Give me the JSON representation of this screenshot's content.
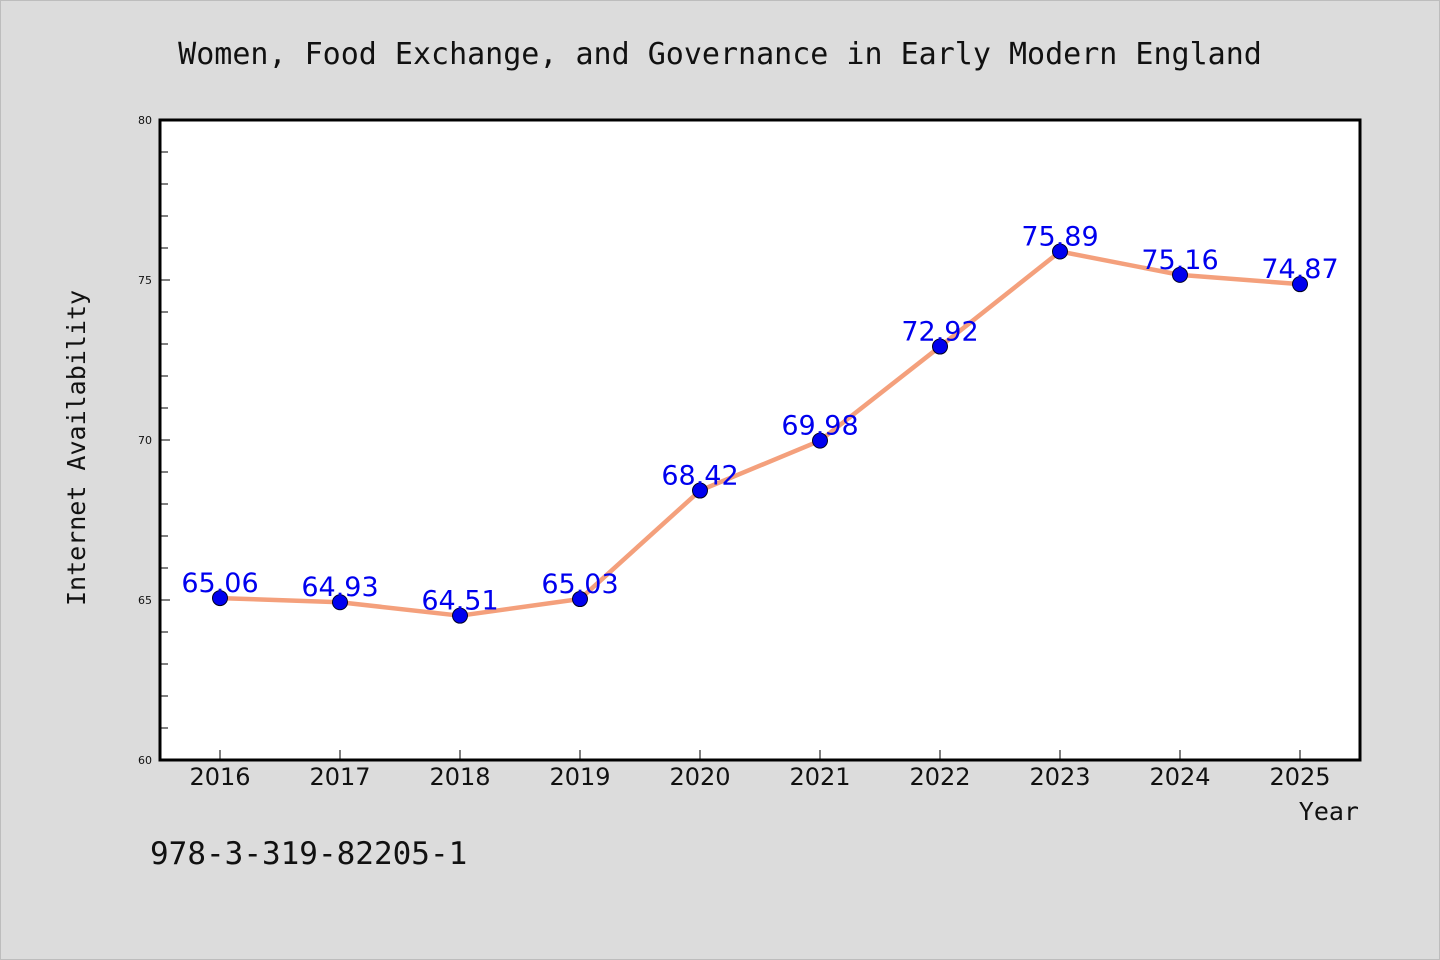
{
  "chart_data": {
    "type": "line",
    "title": "Women, Food Exchange, and Governance in Early Modern England",
    "xlabel": "Year",
    "ylabel": "Internet Availability",
    "categories": [
      "2016",
      "2017",
      "2018",
      "2019",
      "2020",
      "2021",
      "2022",
      "2023",
      "2024",
      "2025"
    ],
    "series": [
      {
        "values": [
          65.06,
          64.93,
          64.51,
          65.03,
          68.42,
          69.98,
          72.92,
          75.89,
          75.16,
          74.87
        ],
        "data_labels": [
          "65.06",
          "64.93",
          "64.51",
          "65.03",
          "68.42",
          "69.98",
          "72.92",
          "75.89",
          "75.16",
          "74.87"
        ]
      }
    ],
    "ylim": [
      60,
      80
    ],
    "yticks": [
      "60",
      "65",
      "70",
      "75",
      "80"
    ],
    "grid": false,
    "legend": "none",
    "colors": {
      "line": "#f4a07c",
      "marker": "#0000ee",
      "label": "#0000ee",
      "background": "#dcdcdc",
      "plot": "#ffffff"
    }
  },
  "footer": {
    "isbn": "978-3-319-82205-1"
  }
}
